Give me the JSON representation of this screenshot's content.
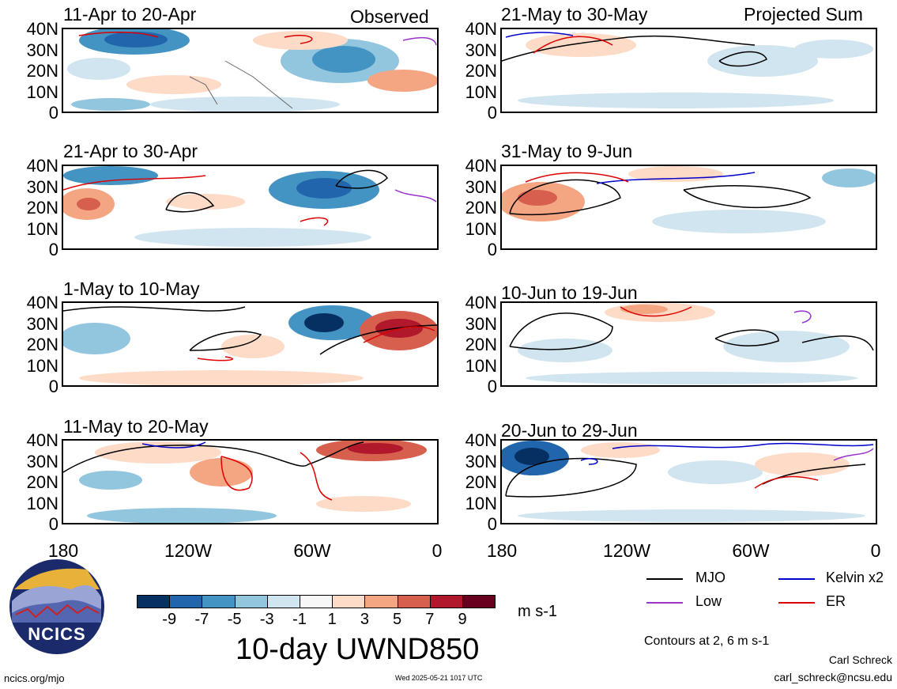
{
  "panels_left": [
    {
      "title": "11-Apr to 20-Apr",
      "tag": "Observed"
    },
    {
      "title": "21-Apr to 30-Apr"
    },
    {
      "title": "1-May to 10-May"
    },
    {
      "title": "11-May to 20-May"
    }
  ],
  "panels_right": [
    {
      "title": "21-May to 30-May",
      "tag": "Projected Sum"
    },
    {
      "title": "31-May to 9-Jun"
    },
    {
      "title": "10-Jun to 19-Jun"
    },
    {
      "title": "20-Jun to 29-Jun"
    }
  ],
  "lat_labels": [
    "40N",
    "30N",
    "20N",
    "10N",
    "0"
  ],
  "lon_labels": [
    "180",
    "120W",
    "60W",
    "0"
  ],
  "legend": {
    "items": [
      {
        "label": "MJO",
        "color": "#000000"
      },
      {
        "label": "Kelvin x2",
        "color": "#0000cc"
      },
      {
        "label": "Low",
        "color": "#9933cc"
      },
      {
        "label": "ER",
        "color": "#dd0000"
      }
    ],
    "contours_note": "Contours at 2, 6 m s-1"
  },
  "colorbar": {
    "colors": [
      "#053061",
      "#2166ac",
      "#4393c3",
      "#92c5de",
      "#d1e5f0",
      "#f7f7f7",
      "#fddbc7",
      "#f4a582",
      "#d6604d",
      "#b2182b",
      "#67001f"
    ],
    "labels": [
      "-9",
      "-7",
      "-5",
      "-3",
      "-1",
      "1",
      "3",
      "5",
      "7",
      "9"
    ],
    "units": "m s-1"
  },
  "main_title": "10-day UWND850",
  "logo_text": "NCICS",
  "footer": {
    "site": "ncics.org/mjo",
    "timestamp": "Wed 2025-05-21 1017 UTC",
    "author": "Carl Schreck",
    "email": "carl_schreck@ncsu.edu"
  }
}
